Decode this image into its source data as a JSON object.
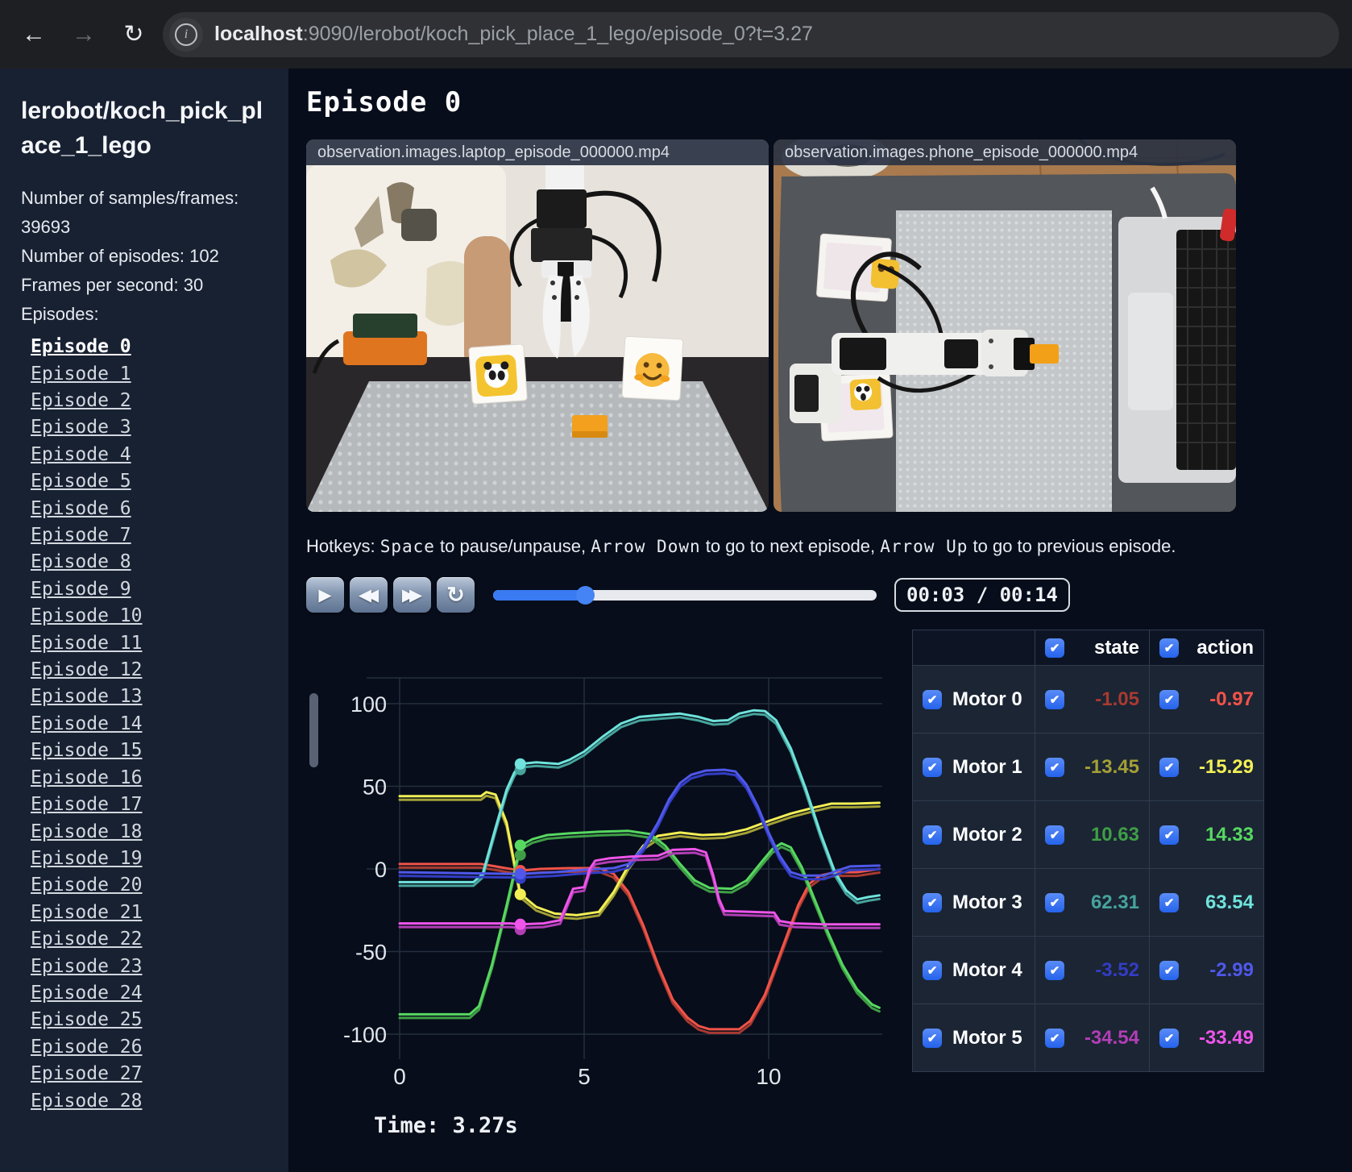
{
  "browser": {
    "back_icon": "←",
    "forward_icon": "→",
    "reload_icon": "↻",
    "info_icon": "i",
    "url_host": "localhost",
    "url_rest": ":9090/lerobot/koch_pick_place_1_lego/episode_0?t=3.27"
  },
  "sidebar": {
    "title": "lerobot/koch_pick_place_1_lego",
    "info_lines": [
      "Number of samples/frames: 39693",
      "Number of episodes: 102",
      "Frames per second: 30",
      "Episodes:"
    ],
    "episodes": [
      {
        "label": "Episode 0",
        "active": true
      },
      {
        "label": "Episode 1",
        "active": false
      },
      {
        "label": "Episode 2",
        "active": false
      },
      {
        "label": "Episode 3",
        "active": false
      },
      {
        "label": "Episode 4",
        "active": false
      },
      {
        "label": "Episode 5",
        "active": false
      },
      {
        "label": "Episode 6",
        "active": false
      },
      {
        "label": "Episode 7",
        "active": false
      },
      {
        "label": "Episode 8",
        "active": false
      },
      {
        "label": "Episode 9",
        "active": false
      },
      {
        "label": "Episode 10",
        "active": false
      },
      {
        "label": "Episode 11",
        "active": false
      },
      {
        "label": "Episode 12",
        "active": false
      },
      {
        "label": "Episode 13",
        "active": false
      },
      {
        "label": "Episode 14",
        "active": false
      },
      {
        "label": "Episode 15",
        "active": false
      },
      {
        "label": "Episode 16",
        "active": false
      },
      {
        "label": "Episode 17",
        "active": false
      },
      {
        "label": "Episode 18",
        "active": false
      },
      {
        "label": "Episode 19",
        "active": false
      },
      {
        "label": "Episode 20",
        "active": false
      },
      {
        "label": "Episode 21",
        "active": false
      },
      {
        "label": "Episode 22",
        "active": false
      },
      {
        "label": "Episode 23",
        "active": false
      },
      {
        "label": "Episode 24",
        "active": false
      },
      {
        "label": "Episode 25",
        "active": false
      },
      {
        "label": "Episode 26",
        "active": false
      },
      {
        "label": "Episode 27",
        "active": false
      },
      {
        "label": "Episode 28",
        "active": false
      }
    ]
  },
  "main": {
    "heading": "Episode 0",
    "videos": [
      {
        "caption": "observation.images.laptop_episode_000000.mp4"
      },
      {
        "caption": "observation.images.phone_episode_000000.mp4"
      }
    ],
    "hotkeys": [
      {
        "text": "Hotkeys: ",
        "mono": false
      },
      {
        "text": "Space",
        "mono": true
      },
      {
        "text": " to pause/unpause, ",
        "mono": false
      },
      {
        "text": "Arrow Down",
        "mono": true
      },
      {
        "text": " to go to next episode, ",
        "mono": false
      },
      {
        "text": "Arrow Up",
        "mono": true
      },
      {
        "text": " to go to previous episode.",
        "mono": false
      }
    ],
    "controls": {
      "play_icon": "▶",
      "rewind_icon": "◀◀",
      "fast_forward_icon": "▶▶",
      "loop_icon": "↻",
      "progress_pct": 24,
      "time_display": "00:03 / 00:14"
    }
  },
  "chart_data": {
    "type": "line",
    "title": "",
    "xlabel": "",
    "ylabel": "",
    "x_ticks": [
      0,
      5,
      10
    ],
    "y_ticks": [
      -100,
      -50,
      0,
      50,
      100
    ],
    "xlim": [
      -0.9,
      13.4
    ],
    "ylim": [
      -117,
      117
    ],
    "grid": true,
    "time_cursor_s": 3.27,
    "footer": "Time: 3.27s",
    "series": [
      {
        "name": "Motor 0",
        "state_color": "#a83a31",
        "action_color": "#f25348",
        "state_value": -1.05,
        "action_value": -0.97,
        "points": [
          [
            0,
            3
          ],
          [
            2.2,
            3
          ],
          [
            2.6,
            1.5
          ],
          [
            3,
            0
          ],
          [
            3.3,
            -1
          ],
          [
            3.8,
            0
          ],
          [
            4.6,
            0.5
          ],
          [
            5.4,
            0.5
          ],
          [
            5.8,
            -3
          ],
          [
            6.2,
            -14
          ],
          [
            6.6,
            -34
          ],
          [
            7,
            -58
          ],
          [
            7.4,
            -79
          ],
          [
            7.8,
            -90
          ],
          [
            8.1,
            -95
          ],
          [
            8.4,
            -97
          ],
          [
            9.2,
            -97
          ],
          [
            9.5,
            -92
          ],
          [
            9.9,
            -76
          ],
          [
            10.2,
            -58
          ],
          [
            10.5,
            -40
          ],
          [
            10.8,
            -22
          ],
          [
            11.1,
            -9
          ],
          [
            11.4,
            -4
          ],
          [
            11.8,
            -2
          ],
          [
            12.4,
            -2
          ],
          [
            13,
            0
          ]
        ]
      },
      {
        "name": "Motor 1",
        "state_color": "#a3a036",
        "action_color": "#f3ef55",
        "state_value": -13.45,
        "action_value": -15.29,
        "points": [
          [
            0,
            44
          ],
          [
            2.2,
            44
          ],
          [
            2.35,
            46.5
          ],
          [
            2.6,
            45
          ],
          [
            2.9,
            28
          ],
          [
            3.27,
            -15
          ],
          [
            3.7,
            -23
          ],
          [
            4.2,
            -27
          ],
          [
            4.8,
            -28
          ],
          [
            5.4,
            -26
          ],
          [
            5.8,
            -14
          ],
          [
            6.2,
            2
          ],
          [
            6.6,
            14
          ],
          [
            7,
            20
          ],
          [
            7.6,
            22
          ],
          [
            8.2,
            20.5
          ],
          [
            8.8,
            21
          ],
          [
            9.4,
            24
          ],
          [
            10,
            29
          ],
          [
            10.6,
            33.5
          ],
          [
            11.2,
            37
          ],
          [
            11.7,
            39.5
          ],
          [
            12.3,
            39.5
          ],
          [
            13,
            40
          ]
        ]
      },
      {
        "name": "Motor 2",
        "state_color": "#3f9e46",
        "action_color": "#57d860",
        "state_value": 10.63,
        "action_value": 14.33,
        "points": [
          [
            0,
            -88
          ],
          [
            1.9,
            -88
          ],
          [
            2.15,
            -83
          ],
          [
            2.5,
            -58
          ],
          [
            2.9,
            -22
          ],
          [
            3.27,
            14
          ],
          [
            3.6,
            18
          ],
          [
            4,
            20.5
          ],
          [
            4.6,
            21.5
          ],
          [
            5.4,
            22.5
          ],
          [
            6.2,
            23
          ],
          [
            6.8,
            21
          ],
          [
            7.2,
            14
          ],
          [
            7.6,
            3
          ],
          [
            8,
            -7
          ],
          [
            8.4,
            -11.5
          ],
          [
            9,
            -12
          ],
          [
            9.4,
            -7
          ],
          [
            9.8,
            4
          ],
          [
            10.1,
            12
          ],
          [
            10.35,
            15.5
          ],
          [
            10.6,
            13
          ],
          [
            10.9,
            1
          ],
          [
            11.2,
            -16
          ],
          [
            11.6,
            -38
          ],
          [
            12,
            -58
          ],
          [
            12.4,
            -73
          ],
          [
            12.8,
            -82
          ],
          [
            13,
            -84
          ]
        ]
      },
      {
        "name": "Motor 3",
        "state_color": "#46a39c",
        "action_color": "#6fe3dc",
        "state_value": 62.31,
        "action_value": 63.54,
        "points": [
          [
            0,
            -8
          ],
          [
            2,
            -8
          ],
          [
            2.25,
            -3
          ],
          [
            2.6,
            25
          ],
          [
            2.9,
            48
          ],
          [
            3.1,
            58
          ],
          [
            3.27,
            63.5
          ],
          [
            3.7,
            64.5
          ],
          [
            4.3,
            63.5
          ],
          [
            4.6,
            66
          ],
          [
            5,
            71
          ],
          [
            5.5,
            80
          ],
          [
            6,
            88
          ],
          [
            6.5,
            92
          ],
          [
            7,
            93
          ],
          [
            7.6,
            94
          ],
          [
            8.1,
            92
          ],
          [
            8.5,
            89.5
          ],
          [
            8.9,
            90
          ],
          [
            9.2,
            94
          ],
          [
            9.6,
            96
          ],
          [
            9.9,
            95.5
          ],
          [
            10.2,
            90
          ],
          [
            10.6,
            73
          ],
          [
            11,
            49
          ],
          [
            11.4,
            22
          ],
          [
            11.8,
            -2
          ],
          [
            12.1,
            -13
          ],
          [
            12.4,
            -18.5
          ],
          [
            12.7,
            -17
          ],
          [
            13,
            -16
          ]
        ]
      },
      {
        "name": "Motor 4",
        "state_color": "#333dc4",
        "action_color": "#4f58ea",
        "state_value": -3.52,
        "action_value": -2.99,
        "points": [
          [
            0,
            -2
          ],
          [
            1.5,
            -2.5
          ],
          [
            3,
            -3
          ],
          [
            3.27,
            -3
          ],
          [
            4.2,
            -2
          ],
          [
            5,
            -0.5
          ],
          [
            5.8,
            0.5
          ],
          [
            6.2,
            3
          ],
          [
            6.6,
            13
          ],
          [
            7,
            28
          ],
          [
            7.3,
            42
          ],
          [
            7.6,
            52
          ],
          [
            7.9,
            57
          ],
          [
            8.3,
            59.5
          ],
          [
            8.8,
            60
          ],
          [
            9.1,
            59
          ],
          [
            9.4,
            51
          ],
          [
            9.7,
            38
          ],
          [
            10,
            22
          ],
          [
            10.3,
            8
          ],
          [
            10.6,
            -2
          ],
          [
            10.9,
            -4
          ],
          [
            11.5,
            -4
          ],
          [
            11.8,
            -1.5
          ],
          [
            12.2,
            1.5
          ],
          [
            13,
            2
          ]
        ]
      },
      {
        "name": "Motor 5",
        "state_color": "#b13eb5",
        "action_color": "#ef55ea",
        "state_value": -34.54,
        "action_value": -33.49,
        "points": [
          [
            0,
            -33
          ],
          [
            3,
            -33
          ],
          [
            3.27,
            -33.5
          ],
          [
            3.9,
            -33
          ],
          [
            4.35,
            -31
          ],
          [
            4.55,
            -20
          ],
          [
            4.7,
            -12
          ],
          [
            5,
            -11
          ],
          [
            5.15,
            0
          ],
          [
            5.3,
            5
          ],
          [
            5.7,
            6.5
          ],
          [
            6.3,
            7.5
          ],
          [
            7,
            8
          ],
          [
            7.4,
            11.5
          ],
          [
            8,
            12
          ],
          [
            8.3,
            10
          ],
          [
            8.5,
            -4
          ],
          [
            8.65,
            -18
          ],
          [
            8.8,
            -25.5
          ],
          [
            9.5,
            -26
          ],
          [
            10.15,
            -26.5
          ],
          [
            10.3,
            -31.5
          ],
          [
            10.7,
            -33
          ],
          [
            11.5,
            -33.5
          ],
          [
            12.3,
            -33.5
          ],
          [
            13,
            -33.5
          ]
        ]
      }
    ]
  },
  "motor_table": {
    "state_header": "state",
    "action_header": "action",
    "checkmark": "✔",
    "rows": [
      {
        "motor": "Motor 0",
        "state": "-1.05",
        "action": "-0.97",
        "state_color": "#a83a31",
        "action_color": "#f25348"
      },
      {
        "motor": "Motor 1",
        "state": "-13.45",
        "action": "-15.29",
        "state_color": "#a3a036",
        "action_color": "#f3ef55"
      },
      {
        "motor": "Motor 2",
        "state": "10.63",
        "action": "14.33",
        "state_color": "#3f9e46",
        "action_color": "#57d860"
      },
      {
        "motor": "Motor 3",
        "state": "62.31",
        "action": "63.54",
        "state_color": "#46a39c",
        "action_color": "#6fe3dc"
      },
      {
        "motor": "Motor 4",
        "state": "-3.52",
        "action": "-2.99",
        "state_color": "#333dc4",
        "action_color": "#4f58ea"
      },
      {
        "motor": "Motor 5",
        "state": "-34.54",
        "action": "-33.49",
        "state_color": "#b13eb5",
        "action_color": "#ef55ea"
      }
    ]
  }
}
